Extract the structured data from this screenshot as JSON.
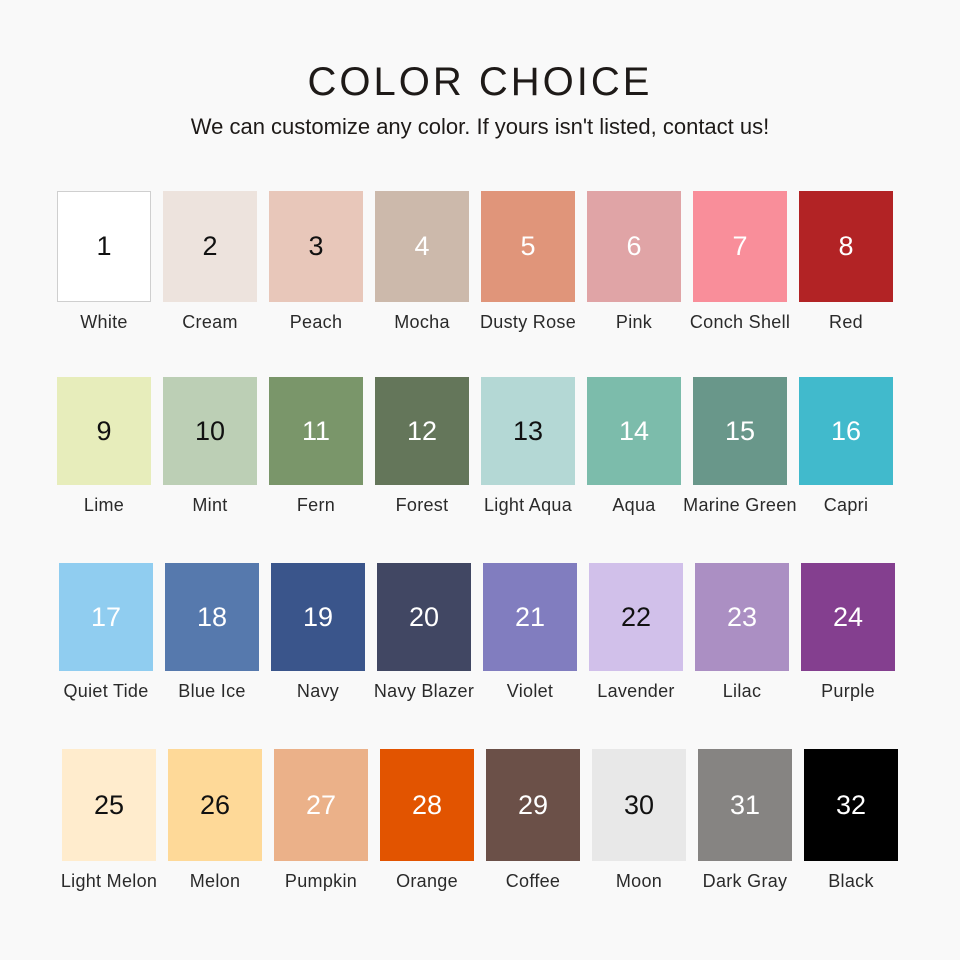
{
  "header": {
    "title": "COLOR CHOICE",
    "subtitle": "We can customize any color. If yours isn't listed, contact us!"
  },
  "rows": [
    [
      {
        "number": "1",
        "name": "White",
        "color": "#ffffff",
        "text": "#111111",
        "border": true
      },
      {
        "number": "2",
        "name": "Cream",
        "color": "#ede3dd",
        "text": "#111111"
      },
      {
        "number": "3",
        "name": "Peach",
        "color": "#e8c7ba",
        "text": "#111111"
      },
      {
        "number": "4",
        "name": "Mocha",
        "color": "#ccb9ab",
        "text": "#ffffff"
      },
      {
        "number": "5",
        "name": "Dusty Rose",
        "color": "#e0957a",
        "text": "#ffffff"
      },
      {
        "number": "6",
        "name": "Pink",
        "color": "#e0a4a6",
        "text": "#ffffff"
      },
      {
        "number": "7",
        "name": "Conch Shell",
        "color": "#f98e9a",
        "text": "#ffffff"
      },
      {
        "number": "8",
        "name": "Red",
        "color": "#b22325",
        "text": "#ffffff"
      }
    ],
    [
      {
        "number": "9",
        "name": "Lime",
        "color": "#e7edbb",
        "text": "#111111"
      },
      {
        "number": "10",
        "name": "Mint",
        "color": "#bccfb5",
        "text": "#111111"
      },
      {
        "number": "11",
        "name": "Fern",
        "color": "#7a966a",
        "text": "#ffffff"
      },
      {
        "number": "12",
        "name": "Forest",
        "color": "#64765a",
        "text": "#ffffff"
      },
      {
        "number": "13",
        "name": "Light Aqua",
        "color": "#b4d8d5",
        "text": "#111111"
      },
      {
        "number": "14",
        "name": "Aqua",
        "color": "#7cbcab",
        "text": "#ffffff"
      },
      {
        "number": "15",
        "name": "Marine Green",
        "color": "#69978a",
        "text": "#ffffff"
      },
      {
        "number": "16",
        "name": "Capri",
        "color": "#41bacc",
        "text": "#ffffff"
      }
    ],
    [
      {
        "number": "17",
        "name": "Quiet Tide",
        "color": "#90cdf0",
        "text": "#ffffff"
      },
      {
        "number": "18",
        "name": "Blue Ice",
        "color": "#5679ad",
        "text": "#ffffff"
      },
      {
        "number": "19",
        "name": "Navy",
        "color": "#3a558b",
        "text": "#ffffff"
      },
      {
        "number": "20",
        "name": "Navy Blazer",
        "color": "#414763",
        "text": "#ffffff"
      },
      {
        "number": "21",
        "name": "Violet",
        "color": "#817dbf",
        "text": "#ffffff"
      },
      {
        "number": "22",
        "name": "Lavender",
        "color": "#d1c0ea",
        "text": "#111111"
      },
      {
        "number": "23",
        "name": "Lilac",
        "color": "#ab8fc3",
        "text": "#ffffff"
      },
      {
        "number": "24",
        "name": "Purple",
        "color": "#843f8f",
        "text": "#ffffff"
      }
    ],
    [
      {
        "number": "25",
        "name": "Light Melon",
        "color": "#ffeccd",
        "text": "#111111"
      },
      {
        "number": "26",
        "name": "Melon",
        "color": "#fed998",
        "text": "#111111"
      },
      {
        "number": "27",
        "name": "Pumpkin",
        "color": "#ebb189",
        "text": "#ffffff"
      },
      {
        "number": "28",
        "name": "Orange",
        "color": "#e25400",
        "text": "#ffffff"
      },
      {
        "number": "29",
        "name": "Coffee",
        "color": "#6b5048",
        "text": "#ffffff"
      },
      {
        "number": "30",
        "name": "Moon",
        "color": "#e8e8e8",
        "text": "#111111"
      },
      {
        "number": "31",
        "name": "Dark Gray",
        "color": "#868482",
        "text": "#ffffff"
      },
      {
        "number": "32",
        "name": "Black",
        "color": "#000000",
        "text": "#ffffff"
      }
    ]
  ]
}
